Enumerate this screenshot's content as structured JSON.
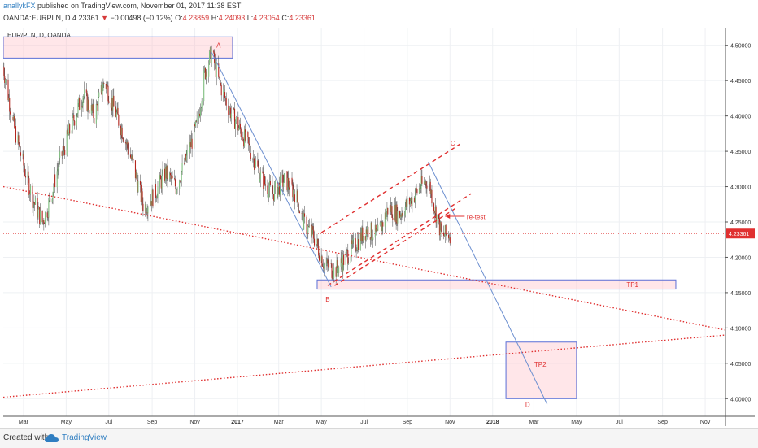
{
  "header": {
    "author": "anallykFX",
    "published_text": " published on TradingView.com, November 01, 2017 11:38 EST",
    "symbol": "OANDA:EURPLN, D",
    "price": "4.23361",
    "change": "−0.00498 (−0.12%)",
    "o_label": "O:",
    "o_value": "4.23859",
    "h_label": "H:",
    "h_value": "4.24093",
    "l_label": "L:",
    "l_value": "4.23054",
    "c_label": "C:",
    "c_value": "4.23361"
  },
  "footer": {
    "created_with": "Created with",
    "brand": "TradingView"
  },
  "chart_data": {
    "type": "candlestick",
    "legend": "EUR/PLN, D, OANDA",
    "y_range": [
      3.975,
      4.525
    ],
    "y_ticks": [
      4.0,
      4.05,
      4.1,
      4.15,
      4.2,
      4.25,
      4.3,
      4.35,
      4.4,
      4.45,
      4.5
    ],
    "y_tick_labels": [
      "4.00000",
      "4.05000",
      "4.10000",
      "4.15000",
      "4.20000",
      "4.25000",
      "4.30000",
      "4.35000",
      "4.40000",
      "4.45000",
      "4.50000"
    ],
    "x_range": [
      "2016-02-01",
      "2018-11-30"
    ],
    "x_ticks": [
      {
        "date": "2016-03-01",
        "label": "Mar",
        "bold": false
      },
      {
        "date": "2016-05-01",
        "label": "May",
        "bold": false
      },
      {
        "date": "2016-07-01",
        "label": "Jul",
        "bold": false
      },
      {
        "date": "2016-09-01",
        "label": "Sep",
        "bold": false
      },
      {
        "date": "2016-11-01",
        "label": "Nov",
        "bold": false
      },
      {
        "date": "2017-01-01",
        "label": "2017",
        "bold": true
      },
      {
        "date": "2017-03-01",
        "label": "Mar",
        "bold": false
      },
      {
        "date": "2017-05-01",
        "label": "May",
        "bold": false
      },
      {
        "date": "2017-07-01",
        "label": "Jul",
        "bold": false
      },
      {
        "date": "2017-09-01",
        "label": "Sep",
        "bold": false
      },
      {
        "date": "2017-11-01",
        "label": "Nov",
        "bold": false
      },
      {
        "date": "2018-01-01",
        "label": "2018",
        "bold": true
      },
      {
        "date": "2018-03-01",
        "label": "Mar",
        "bold": false
      },
      {
        "date": "2018-05-01",
        "label": "May",
        "bold": false
      },
      {
        "date": "2018-07-01",
        "label": "Jul",
        "bold": false
      },
      {
        "date": "2018-09-01",
        "label": "Sep",
        "bold": false
      },
      {
        "date": "2018-11-01",
        "label": "Nov",
        "bold": false
      }
    ],
    "close_path": [
      [
        "2016-02-01",
        4.47
      ],
      [
        "2016-02-15",
        4.39
      ],
      [
        "2016-03-01",
        4.33
      ],
      [
        "2016-03-15",
        4.28
      ],
      [
        "2016-03-28",
        4.25
      ],
      [
        "2016-04-05",
        4.27
      ],
      [
        "2016-04-20",
        4.33
      ],
      [
        "2016-05-10",
        4.39
      ],
      [
        "2016-05-25",
        4.43
      ],
      [
        "2016-06-10",
        4.4
      ],
      [
        "2016-06-25",
        4.45
      ],
      [
        "2016-07-05",
        4.42
      ],
      [
        "2016-07-20",
        4.38
      ],
      [
        "2016-08-05",
        4.33
      ],
      [
        "2016-08-20",
        4.27
      ],
      [
        "2016-09-05",
        4.29
      ],
      [
        "2016-09-20",
        4.32
      ],
      [
        "2016-10-05",
        4.3
      ],
      [
        "2016-10-20",
        4.34
      ],
      [
        "2016-11-05",
        4.39
      ],
      [
        "2016-11-15",
        4.46
      ],
      [
        "2016-11-25",
        4.49
      ],
      [
        "2016-12-05",
        4.45
      ],
      [
        "2016-12-20",
        4.41
      ],
      [
        "2017-01-05",
        4.38
      ],
      [
        "2017-01-20",
        4.35
      ],
      [
        "2017-02-05",
        4.31
      ],
      [
        "2017-02-20",
        4.29
      ],
      [
        "2017-03-10",
        4.31
      ],
      [
        "2017-03-25",
        4.29
      ],
      [
        "2017-04-05",
        4.25
      ],
      [
        "2017-04-20",
        4.23
      ],
      [
        "2017-05-05",
        4.19
      ],
      [
        "2017-05-20",
        4.18
      ],
      [
        "2017-06-05",
        4.2
      ],
      [
        "2017-06-20",
        4.22
      ],
      [
        "2017-07-05",
        4.24
      ],
      [
        "2017-07-20",
        4.23
      ],
      [
        "2017-08-05",
        4.27
      ],
      [
        "2017-08-20",
        4.26
      ],
      [
        "2017-09-05",
        4.28
      ],
      [
        "2017-09-20",
        4.3
      ],
      [
        "2017-10-01",
        4.31
      ],
      [
        "2017-10-10",
        4.27
      ],
      [
        "2017-10-20",
        4.23
      ],
      [
        "2017-11-01",
        4.2336
      ]
    ],
    "last_price": 4.23361,
    "last_price_label": "4.23361",
    "zones": [
      {
        "name": "A-zone",
        "label": "",
        "x1": "2016-02-01",
        "x2": "2016-12-25",
        "y1": 4.482,
        "y2": 4.512
      },
      {
        "name": "TP1",
        "label": "TP1",
        "x1": "2017-04-25",
        "x2": "2018-09-20",
        "y1": 4.155,
        "y2": 4.168
      },
      {
        "name": "TP2",
        "label": "TP2",
        "x1": "2018-01-20",
        "x2": "2018-05-01",
        "y1": 4.0,
        "y2": 4.08
      }
    ],
    "lines": [
      {
        "name": "long-downtrend",
        "style": "dotted",
        "color": "#e03030",
        "x1": "2016-02-01",
        "y1": 4.3,
        "x2": "2018-11-30",
        "y2": 4.097
      },
      {
        "name": "long-uptrend",
        "style": "dotted",
        "color": "#e03030",
        "x1": "2016-02-01",
        "y1": 4.002,
        "x2": "2018-11-30",
        "y2": 4.09
      },
      {
        "name": "channel-top",
        "style": "dashed",
        "color": "#e03030",
        "x1": "2017-05-01",
        "y1": 4.235,
        "x2": "2017-11-15",
        "y2": 4.36
      },
      {
        "name": "channel-middle",
        "style": "dashed",
        "color": "#e03030",
        "x1": "2017-05-10",
        "y1": 4.16,
        "x2": "2017-12-01",
        "y2": 4.29
      },
      {
        "name": "channel-bottom",
        "style": "dashed",
        "color": "#e03030",
        "x1": "2017-05-20",
        "y1": 4.16,
        "x2": "2017-11-10",
        "y2": 4.27
      },
      {
        "name": "wave-AB",
        "style": "solid",
        "color": "#6c8fd0",
        "x1": "2016-11-25",
        "y1": 4.49,
        "x2": "2017-05-15",
        "y2": 4.158
      },
      {
        "name": "wave-CD",
        "style": "solid",
        "color": "#6c8fd0",
        "x1": "2017-10-01",
        "y1": 4.335,
        "x2": "2018-03-20",
        "y2": 3.992
      }
    ],
    "annotations": [
      {
        "name": "label-A",
        "text": "A",
        "x": "2016-12-05",
        "y": 4.497
      },
      {
        "name": "label-B",
        "text": "B",
        "x": "2017-05-10",
        "y": 4.137
      },
      {
        "name": "label-C",
        "text": "C",
        "x": "2017-11-05",
        "y": 4.358
      },
      {
        "name": "label-D",
        "text": "D",
        "x": "2018-02-20",
        "y": 3.988
      },
      {
        "name": "label-retest",
        "text": "re-test",
        "x": "2017-11-25",
        "y": 4.254
      }
    ],
    "retest_arrow": {
      "x1": "2017-11-22",
      "x2": "2017-10-25",
      "y": 4.258
    }
  }
}
